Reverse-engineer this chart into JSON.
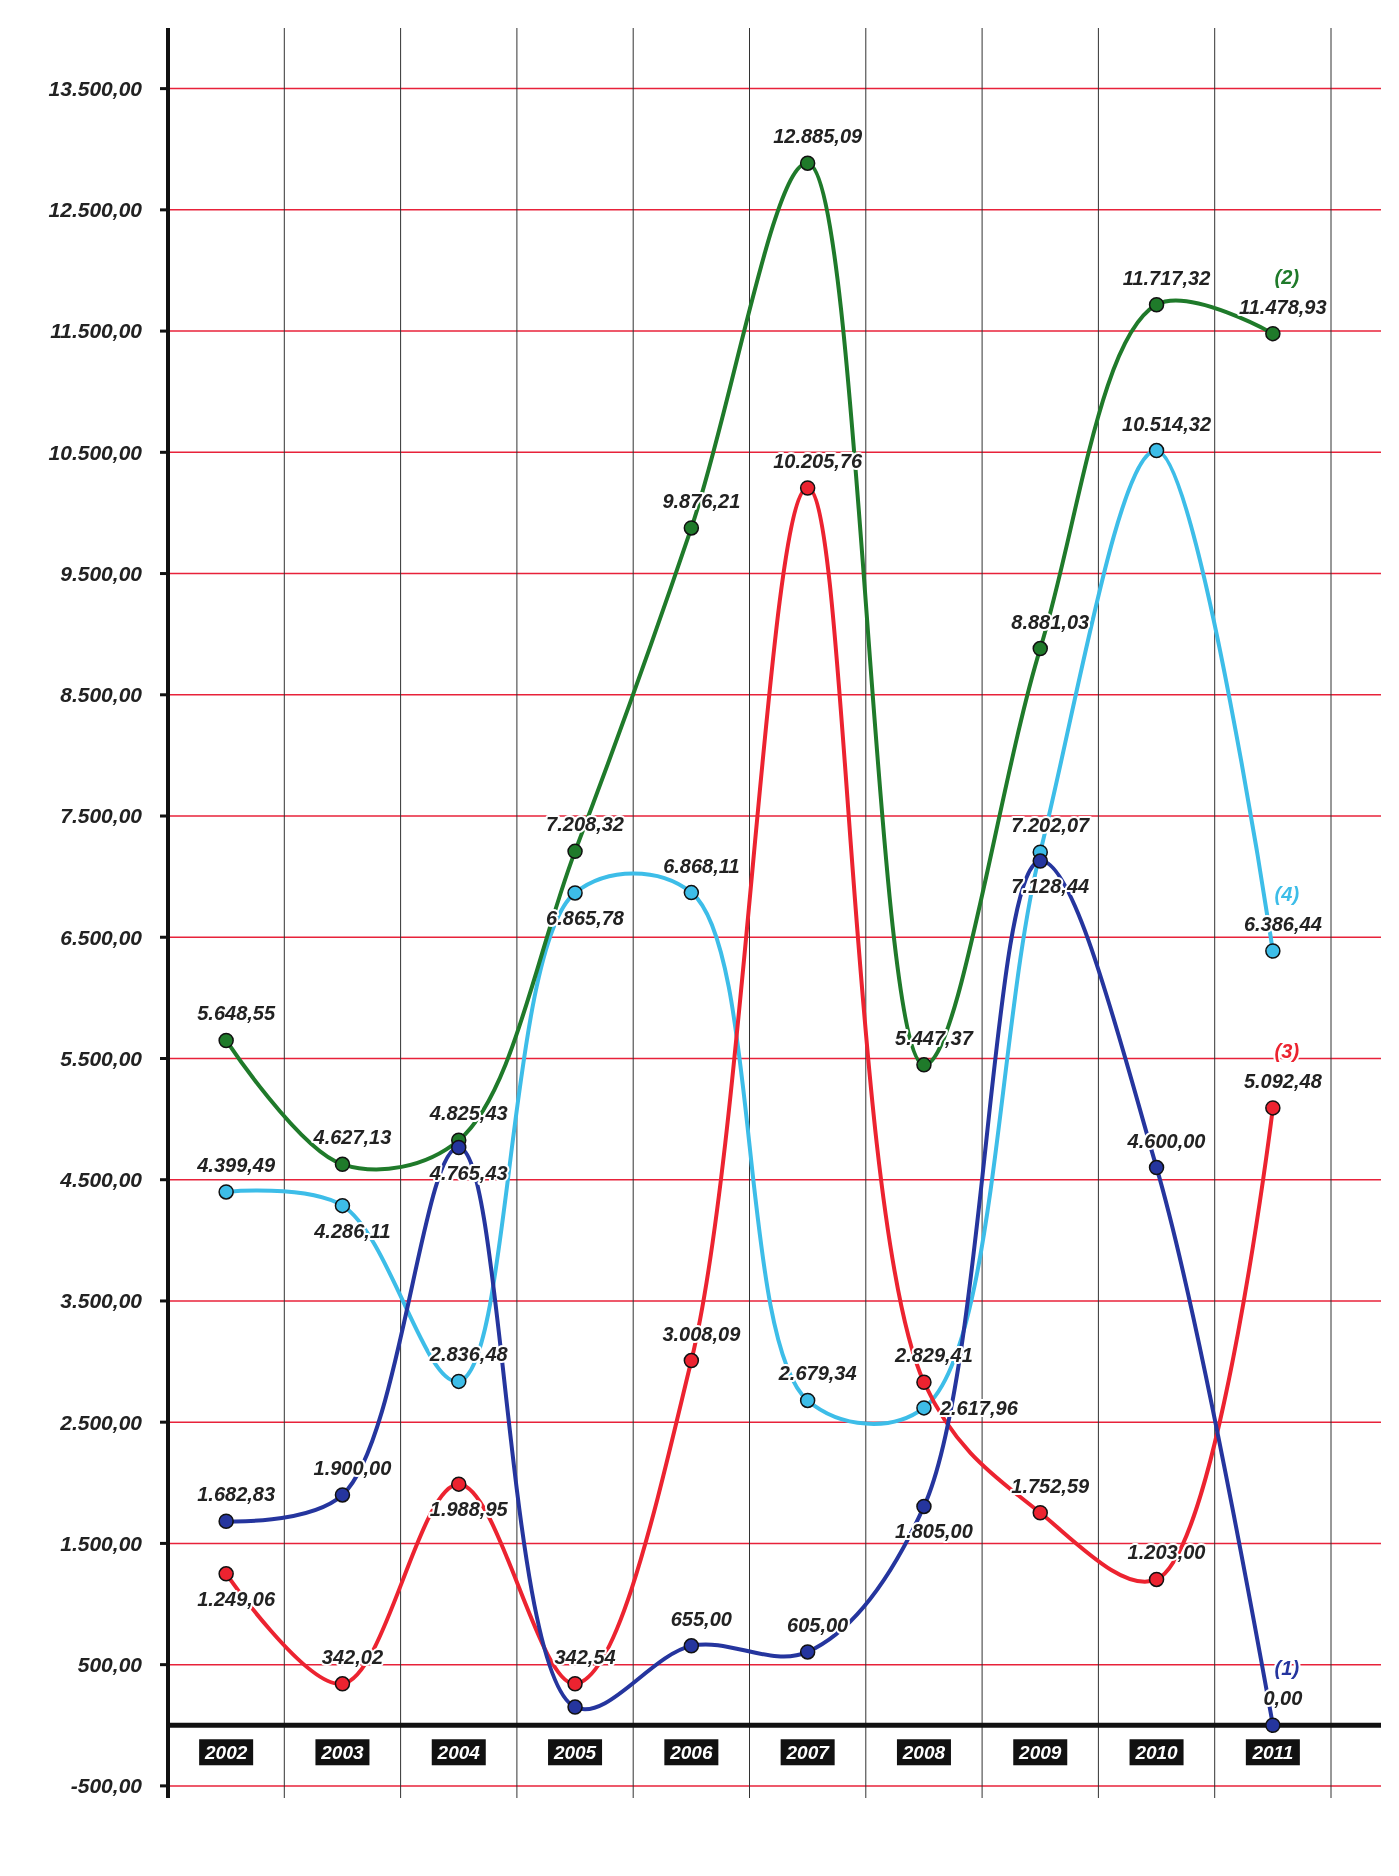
{
  "chart_data": {
    "type": "line",
    "categories": [
      "2002",
      "2003",
      "2004",
      "2005",
      "2006",
      "2007",
      "2008",
      "2009",
      "2010",
      "2011"
    ],
    "series": [
      {
        "name": "(1)",
        "color": "#25359e",
        "values": [
          1682.83,
          1900.0,
          4765.43,
          150,
          655.0,
          605.0,
          1805.0,
          7128.44,
          4600.0,
          0.0
        ],
        "value_labels": [
          "1.682,83",
          "1.900,00",
          "4.765,43",
          null,
          "655,00",
          "605,00",
          "1.805,00",
          "7.128,44",
          "4.600,00",
          "0,00"
        ]
      },
      {
        "name": "(2)",
        "color": "#1f7a2a",
        "values": [
          5648.55,
          4627.13,
          4825.43,
          7208.32,
          9876.21,
          12885.09,
          5447.37,
          8881.03,
          11717.32,
          11478.93
        ],
        "value_labels": [
          "5.648,55",
          "4.627,13",
          "4.825,43",
          "7.208,32",
          "9.876,21",
          "12.885,09",
          "5.447,37",
          "8.881,03",
          "11.717,32",
          "11.478,93"
        ]
      },
      {
        "name": "(3)",
        "color": "#ec2330",
        "values": [
          1249.06,
          342.02,
          1988.95,
          342.54,
          3008.09,
          10205.76,
          2829.41,
          1752.59,
          1203.0,
          5092.48
        ],
        "value_labels": [
          "1.249,06",
          "342,02",
          "1.988,95",
          "342,54",
          "3.008,09",
          "10.205,76",
          "2.829,41",
          "1.752,59",
          "1.203,00",
          "5.092,48"
        ]
      },
      {
        "name": "(4)",
        "color": "#3dbde8",
        "values": [
          4399.49,
          4286.11,
          2836.48,
          6865.78,
          6868.11,
          2679.34,
          2617.96,
          7202.07,
          10514.32,
          6386.44
        ],
        "value_labels": [
          "4.399,49",
          "4.286,11",
          "2.836,48",
          "6.865,78",
          "6.868,11",
          "2.679,34",
          "2.617,96",
          "7.202,07",
          "10.514,32",
          "6.386,44"
        ]
      }
    ],
    "ylim": [
      -600,
      14000
    ],
    "yticks": [
      {
        "value": -500,
        "label": "-500,00"
      },
      {
        "value": 500,
        "label": "500,00"
      },
      {
        "value": 1500,
        "label": "1.500,00"
      },
      {
        "value": 2500,
        "label": "2.500,00"
      },
      {
        "value": 3500,
        "label": "3.500,00"
      },
      {
        "value": 4500,
        "label": "4.500,00"
      },
      {
        "value": 5500,
        "label": "5.500,00"
      },
      {
        "value": 6500,
        "label": "6.500,00"
      },
      {
        "value": 7500,
        "label": "7.500,00"
      },
      {
        "value": 8500,
        "label": "8.500,00"
      },
      {
        "value": 9500,
        "label": "9.500,00"
      },
      {
        "value": 10500,
        "label": "10.500,00"
      },
      {
        "value": 11500,
        "label": "11.500,00"
      },
      {
        "value": 12500,
        "label": "12.500,00"
      },
      {
        "value": 13500,
        "label": "13.500,00"
      }
    ],
    "grid": true,
    "marker": "circle"
  }
}
